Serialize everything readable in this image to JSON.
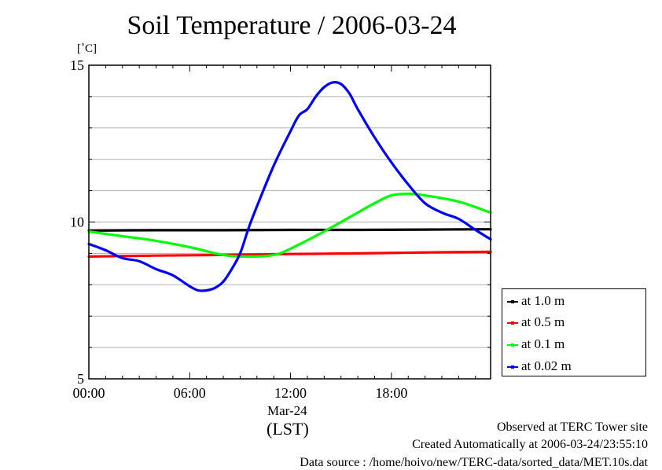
{
  "chart_data": {
    "type": "line",
    "title": "Soil Temperature / 2006-03-24",
    "ylabel": "[˚C]",
    "xlabel": "(LST)",
    "x_date_label": "Mar-24",
    "ylim": [
      5,
      15
    ],
    "xlim": [
      0,
      23.9
    ],
    "yticks": [
      5,
      10,
      15
    ],
    "xticks": [
      {
        "value": 0,
        "label": "00:00"
      },
      {
        "value": 6,
        "label": "06:00"
      },
      {
        "value": 12,
        "label": "12:00"
      },
      {
        "value": 18,
        "label": "18:00"
      }
    ],
    "grid": true,
    "legend_position": "bottom-right",
    "series": [
      {
        "name": "at 1.0 m",
        "color": "#000000",
        "x": [
          0,
          4,
          8,
          12,
          16,
          20,
          23.9
        ],
        "y": [
          9.73,
          9.74,
          9.74,
          9.75,
          9.75,
          9.76,
          9.77
        ]
      },
      {
        "name": "at 0.5 m",
        "color": "#ff0000",
        "x": [
          0,
          4,
          8,
          12,
          16,
          20,
          23.9
        ],
        "y": [
          8.9,
          8.93,
          8.95,
          8.98,
          9.0,
          9.03,
          9.05
        ]
      },
      {
        "name": "at 0.1 m",
        "color": "#00ff00",
        "x": [
          0,
          2,
          4,
          6,
          8,
          9.5,
          11,
          12,
          14,
          16,
          17,
          18,
          19,
          20,
          22,
          23.9
        ],
        "y": [
          9.7,
          9.55,
          9.4,
          9.2,
          8.95,
          8.9,
          8.95,
          9.15,
          9.7,
          10.3,
          10.6,
          10.85,
          10.9,
          10.85,
          10.65,
          10.3
        ]
      },
      {
        "name": "at 0.02 m",
        "color": "#0000ff",
        "x": [
          0,
          1,
          2,
          3,
          4,
          5,
          6,
          6.5,
          7,
          7.5,
          8,
          8.5,
          9,
          9.5,
          10,
          11,
          12,
          12.5,
          13,
          13.5,
          14,
          14.5,
          15,
          15.5,
          16,
          17,
          18,
          19,
          20,
          21,
          22,
          23,
          23.9
        ],
        "y": [
          9.3,
          9.1,
          8.85,
          8.75,
          8.5,
          8.3,
          7.95,
          7.82,
          7.82,
          7.9,
          8.1,
          8.5,
          9.0,
          9.8,
          10.5,
          11.8,
          12.9,
          13.4,
          13.6,
          14.0,
          14.3,
          14.45,
          14.4,
          14.1,
          13.6,
          12.7,
          11.9,
          11.2,
          10.6,
          10.3,
          10.1,
          9.75,
          9.45
        ]
      }
    ]
  },
  "footer": {
    "line1": "Observed at TERC Tower site",
    "line2": "Created Automatically at 2006-03-24/23:55:10",
    "line3": "Data source : /home/hoivo/new/TERC-data/sorted_data/MET.10s.dat"
  }
}
